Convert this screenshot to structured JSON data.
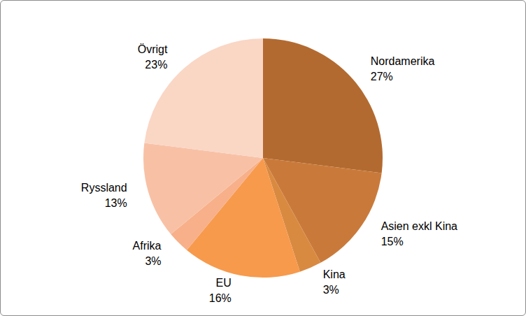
{
  "chart_data": {
    "type": "pie",
    "categories": [
      "Nordamerika",
      "Asien exkl Kina",
      "Kina",
      "EU",
      "Afrika",
      "Ryssland",
      "Övrigt"
    ],
    "values": [
      27,
      15,
      3,
      16,
      3,
      13,
      23
    ],
    "value_labels": [
      "27%",
      "15%",
      "3%",
      "16%",
      "3%",
      "13%",
      "23%"
    ],
    "colors": [
      "#b36a30",
      "#c97a3a",
      "#d98a41",
      "#f79a4c",
      "#f7b08a",
      "#f8c1a5",
      "#fad6c5"
    ],
    "data_labels": true
  }
}
